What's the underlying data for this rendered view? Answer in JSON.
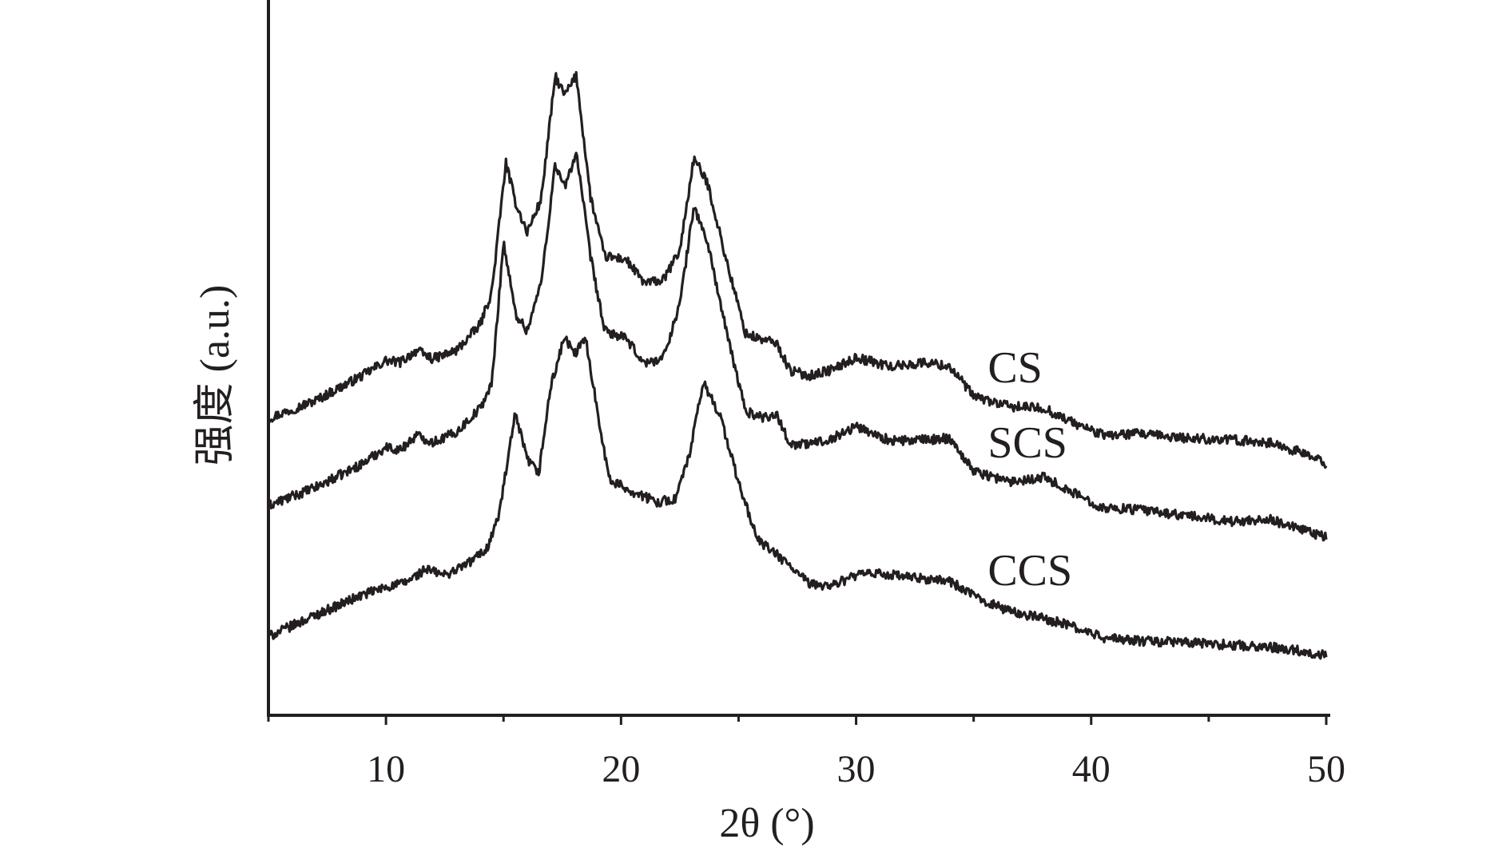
{
  "chart_data": {
    "type": "line",
    "xlabel": "2θ (°)",
    "ylabel": "强度 (a.u.)",
    "xlim": [
      5,
      50
    ],
    "ylim": [
      0,
      12
    ],
    "major_ticks": [
      10,
      20,
      30,
      40,
      50
    ],
    "minor_ticks": [
      5,
      15,
      25,
      35,
      45
    ],
    "tick_labels": [
      "10",
      "20",
      "30",
      "40",
      "50"
    ],
    "grid": false,
    "legend": "none",
    "y_ticks_shown": false,
    "line_color": "#231f20",
    "series": [
      {
        "name": "CS",
        "x": [
          5.0,
          7.0,
          9.0,
          10.0,
          10.6,
          11.3,
          12.0,
          13.0,
          14.0,
          14.5,
          15.1,
          15.5,
          16.0,
          16.6,
          17.2,
          17.6,
          18.1,
          18.7,
          19.3,
          20.2,
          21.0,
          21.8,
          22.5,
          23.1,
          23.7,
          24.5,
          25.3,
          26.0,
          26.6,
          27.2,
          28.0,
          29.0,
          30.0,
          31.5,
          33.0,
          34.0,
          35.0,
          36.5,
          38.0,
          39.0,
          40.5,
          42.0,
          44.0,
          46.0,
          47.5,
          49.0,
          50.0
        ],
        "y": [
          4.98,
          5.28,
          5.7,
          5.95,
          5.92,
          6.12,
          5.98,
          6.12,
          6.55,
          7.1,
          9.27,
          8.62,
          8.1,
          8.65,
          10.72,
          10.4,
          10.73,
          8.7,
          7.7,
          7.65,
          7.25,
          7.3,
          7.8,
          9.35,
          8.9,
          7.6,
          6.4,
          6.3,
          6.25,
          5.78,
          5.7,
          5.8,
          6.0,
          5.85,
          5.92,
          5.85,
          5.35,
          5.18,
          5.15,
          4.95,
          4.7,
          4.72,
          4.65,
          4.62,
          4.58,
          4.4,
          4.22
        ]
      },
      {
        "name": "SCS",
        "x": [
          5.0,
          7.0,
          9.0,
          10.0,
          10.6,
          11.3,
          12.0,
          13.0,
          14.0,
          14.5,
          15.0,
          15.5,
          16.0,
          16.6,
          17.2,
          17.6,
          18.1,
          18.7,
          19.3,
          20.2,
          21.0,
          21.8,
          22.5,
          23.1,
          23.7,
          24.5,
          25.3,
          26.0,
          26.6,
          27.2,
          28.0,
          29.0,
          30.0,
          31.5,
          33.0,
          34.0,
          35.0,
          36.5,
          38.0,
          39.0,
          40.5,
          42.0,
          44.0,
          46.0,
          47.5,
          49.0,
          50.0
        ],
        "y": [
          3.52,
          3.82,
          4.22,
          4.5,
          4.45,
          4.7,
          4.58,
          4.75,
          5.15,
          5.55,
          7.95,
          6.75,
          6.45,
          7.25,
          9.25,
          8.85,
          9.45,
          7.7,
          6.45,
          6.32,
          5.9,
          6.0,
          6.9,
          8.55,
          7.9,
          6.4,
          5.1,
          5.0,
          5.05,
          4.55,
          4.55,
          4.65,
          4.85,
          4.6,
          4.62,
          4.65,
          4.1,
          3.92,
          4.0,
          3.78,
          3.48,
          3.45,
          3.35,
          3.25,
          3.3,
          3.1,
          2.98
        ]
      },
      {
        "name": "CCS",
        "x": [
          5.0,
          7.0,
          9.0,
          10.0,
          10.8,
          11.7,
          12.5,
          13.5,
          14.3,
          14.8,
          15.5,
          16.0,
          16.5,
          17.0,
          17.6,
          18.0,
          18.5,
          19.0,
          19.5,
          20.5,
          21.5,
          22.3,
          22.9,
          23.5,
          24.2,
          25.0,
          25.8,
          26.6,
          27.2,
          28.0,
          29.0,
          30.0,
          31.0,
          32.5,
          34.0,
          35.0,
          36.5,
          38.0,
          39.0,
          40.5,
          42.0,
          44.0,
          46.0,
          47.5,
          49.0,
          50.0
        ],
        "y": [
          1.32,
          1.68,
          2.02,
          2.15,
          2.22,
          2.45,
          2.35,
          2.55,
          2.8,
          3.35,
          5.05,
          4.3,
          4.05,
          5.5,
          6.35,
          6.05,
          6.32,
          5.1,
          3.95,
          3.75,
          3.58,
          3.62,
          4.35,
          5.58,
          5.05,
          3.9,
          2.95,
          2.7,
          2.5,
          2.2,
          2.18,
          2.35,
          2.38,
          2.3,
          2.25,
          2.0,
          1.75,
          1.62,
          1.52,
          1.3,
          1.25,
          1.22,
          1.18,
          1.15,
          1.08,
          1.0
        ]
      }
    ]
  }
}
